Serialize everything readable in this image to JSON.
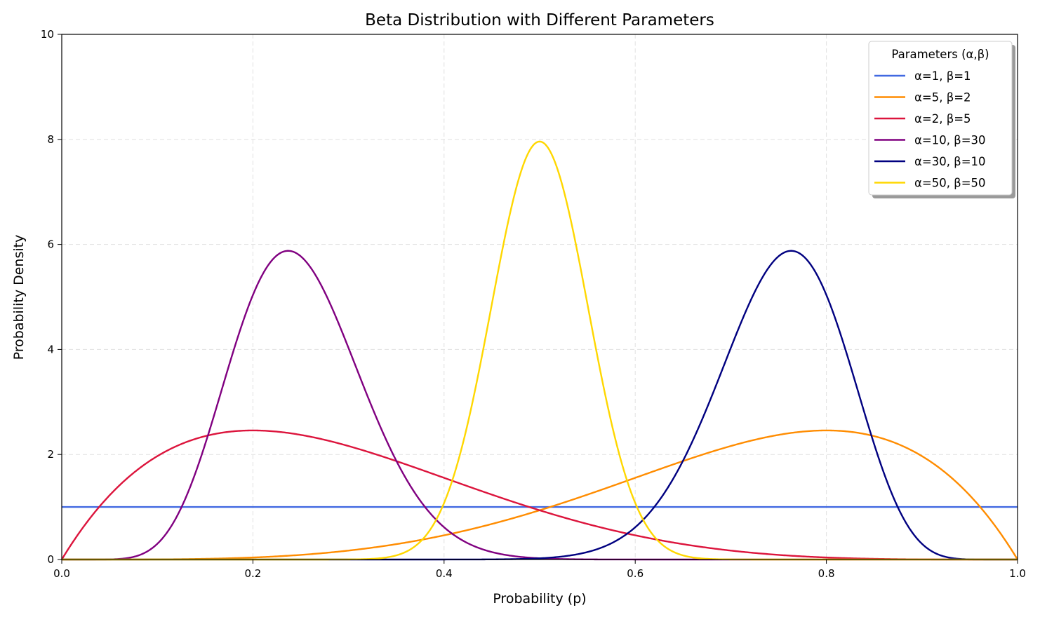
{
  "chart_data": {
    "type": "line",
    "title": "Beta Distribution with Different Parameters",
    "xlabel": "Probability (p)",
    "ylabel": "Probability Density",
    "xlim": [
      0.0,
      1.0
    ],
    "ylim": [
      0,
      10
    ],
    "x_ticks": [
      "0.0",
      "0.2",
      "0.4",
      "0.6",
      "0.8",
      "1.0"
    ],
    "y_ticks": [
      "0",
      "2",
      "4",
      "6",
      "8",
      "10"
    ],
    "grid": true,
    "legend": {
      "title": "Parameters (α,β)",
      "placement": "top-right"
    },
    "series": [
      {
        "name": "α=1, β=1",
        "alpha": 1,
        "beta": 1,
        "color": "#4169E1"
      },
      {
        "name": "α=5, β=2",
        "alpha": 5,
        "beta": 2,
        "color": "#FF8C00"
      },
      {
        "name": "α=2, β=5",
        "alpha": 2,
        "beta": 5,
        "color": "#DC143C"
      },
      {
        "name": "α=10, β=30",
        "alpha": 10,
        "beta": 30,
        "color": "#800080"
      },
      {
        "name": "α=30, β=10",
        "alpha": 30,
        "beta": 10,
        "color": "#000080"
      },
      {
        "name": "α=50, β=50",
        "alpha": 50,
        "beta": 50,
        "color": "#FFD700"
      }
    ]
  }
}
